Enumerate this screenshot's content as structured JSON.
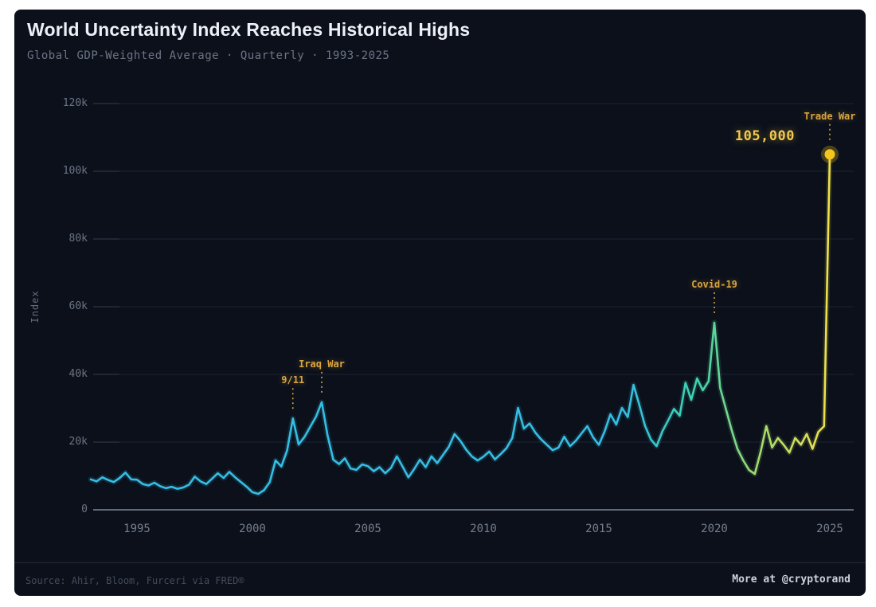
{
  "title": "World Uncertainty Index Reaches Historical Highs",
  "subtitle": "Global GDP-Weighted Average · Quarterly · 1993-2025",
  "footer": {
    "source": "Source: Ahir, Bloom, Furceri via FRED®",
    "more": "More at @cryptorand"
  },
  "colors": {
    "line_cyan": "#35bee4",
    "line_green": "#3ed2ae",
    "line_yellow_green": "#9fdc6e",
    "line_yellow": "#f0e14a",
    "marker_gold": "#f5c71d",
    "annotation_yellow": "#d9a441",
    "value_yellow": "#f2c94c"
  },
  "chart_data": {
    "type": "line",
    "title": "World Uncertainty Index Reaches Historical Highs",
    "xlabel": "",
    "ylabel": "Index",
    "xlim": [
      1993,
      2025.3
    ],
    "ylim": [
      0,
      120000
    ],
    "grid": "horizontal",
    "legend_position": "none",
    "x_ticks": [
      1995,
      2000,
      2005,
      2010,
      2015,
      2020,
      2025
    ],
    "y_ticks": [
      {
        "v": 0,
        "label": "0"
      },
      {
        "v": 20000,
        "label": "20k"
      },
      {
        "v": 40000,
        "label": "40k"
      },
      {
        "v": 60000,
        "label": "60k"
      },
      {
        "v": 80000,
        "label": "80k"
      },
      {
        "v": 100000,
        "label": "100k"
      },
      {
        "v": 120000,
        "label": "120k"
      }
    ],
    "series": [
      {
        "name": "World Uncertainty Index (GDP-weighted, quarterly)",
        "x_start": 1993.0,
        "x_step": 0.25,
        "values": [
          9000,
          8400,
          9600,
          8800,
          8200,
          9400,
          11000,
          9000,
          8900,
          7600,
          7200,
          8000,
          7000,
          6400,
          6800,
          6200,
          6600,
          7400,
          9800,
          8400,
          7600,
          9200,
          10800,
          9400,
          11200,
          9600,
          8200,
          6800,
          5200,
          4700,
          5800,
          8200,
          14600,
          12800,
          17500,
          27000,
          19300,
          21500,
          24500,
          27500,
          31800,
          22000,
          14800,
          13500,
          15200,
          12200,
          11800,
          13400,
          12900,
          11400,
          12600,
          10800,
          12400,
          15800,
          12800,
          9600,
          12000,
          14800,
          12600,
          15800,
          13800,
          16200,
          18600,
          22400,
          20400,
          17800,
          15800,
          14600,
          15700,
          17200,
          14900,
          16500,
          18200,
          21200,
          30100,
          24000,
          25500,
          22800,
          20800,
          19200,
          17600,
          18400,
          21600,
          18800,
          20400,
          22600,
          24700,
          21400,
          19200,
          23200,
          28200,
          25200,
          30100,
          27400,
          36900,
          31000,
          24800,
          20800,
          18800,
          23200,
          26400,
          29800,
          27800,
          37500,
          32500,
          38800,
          35300,
          38000,
          55300,
          36000,
          29800,
          23500,
          18000,
          14600,
          11800,
          10600,
          17000,
          24700,
          18400,
          21200,
          19200,
          16900,
          21200,
          19200,
          22400,
          18000,
          23000,
          24700,
          105000
        ]
      }
    ],
    "annotations": [
      {
        "label": "9/11",
        "x": 2001.75,
        "value": 27000
      },
      {
        "label": "Iraq War",
        "x": 2003.0,
        "value": 31800
      },
      {
        "label": "Covid-19",
        "x": 2020.0,
        "value": 55300
      },
      {
        "label": "Trade War",
        "x": 2025.0,
        "value": 105000,
        "value_label": "105,000",
        "marker": true
      }
    ]
  }
}
